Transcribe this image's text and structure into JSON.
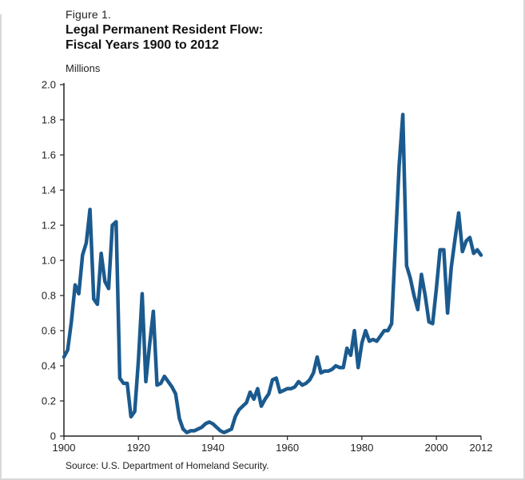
{
  "figure_label": "Figure 1.",
  "title_line1": "Legal Permanent Resident Flow:",
  "title_line2": "Fiscal Years 1900 to 2012",
  "unit_label": "Millions",
  "source": "Source: U.S. Department of Homeland Security.",
  "colors": {
    "line": "#1b5a8e",
    "axis": "#222222"
  },
  "chart_data": {
    "type": "line",
    "title": "Legal Permanent Resident Flow: Fiscal Years 1900 to 2012",
    "xlabel": "",
    "ylabel": "Millions",
    "xlim": [
      1900,
      2012
    ],
    "ylim": [
      0,
      2.0
    ],
    "x_ticks": [
      1900,
      1920,
      1940,
      1960,
      1980,
      2000,
      2012
    ],
    "x_tick_labels": [
      "1900",
      "1920",
      "1940",
      "1960",
      "1980",
      "2000",
      "2012"
    ],
    "y_ticks": [
      0,
      0.2,
      0.4,
      0.6,
      0.8,
      1.0,
      1.2,
      1.4,
      1.6,
      1.8,
      2.0
    ],
    "y_tick_labels": [
      "0",
      "0.2",
      "0.4",
      "0.6",
      "0.8",
      "1.0",
      "1.2",
      "1.4",
      "1.6",
      "1.8",
      "2.0"
    ],
    "grid": false,
    "series": [
      {
        "x": [
          1900,
          1901,
          1902,
          1903,
          1904,
          1905,
          1906,
          1907,
          1908,
          1909,
          1910,
          1911,
          1912,
          1913,
          1914,
          1915,
          1916,
          1917,
          1918,
          1919,
          1920,
          1921,
          1922,
          1923,
          1924,
          1925,
          1926,
          1927,
          1928,
          1929,
          1930,
          1931,
          1932,
          1933,
          1934,
          1935,
          1936,
          1937,
          1938,
          1939,
          1940,
          1941,
          1942,
          1943,
          1944,
          1945,
          1946,
          1947,
          1948,
          1949,
          1950,
          1951,
          1952,
          1953,
          1954,
          1955,
          1956,
          1957,
          1958,
          1959,
          1960,
          1961,
          1962,
          1963,
          1964,
          1965,
          1966,
          1967,
          1968,
          1969,
          1970,
          1971,
          1972,
          1973,
          1974,
          1975,
          1976,
          1977,
          1978,
          1979,
          1980,
          1981,
          1982,
          1983,
          1984,
          1985,
          1986,
          1987,
          1988,
          1989,
          1990,
          1991,
          1992,
          1993,
          1994,
          1995,
          1996,
          1997,
          1998,
          1999,
          2000,
          2001,
          2002,
          2003,
          2004,
          2005,
          2006,
          2007,
          2008,
          2009,
          2010,
          2011,
          2012
        ],
        "y": [
          0.45,
          0.49,
          0.65,
          0.86,
          0.81,
          1.03,
          1.1,
          1.29,
          0.78,
          0.75,
          1.04,
          0.88,
          0.84,
          1.2,
          1.22,
          0.33,
          0.3,
          0.3,
          0.11,
          0.14,
          0.43,
          0.81,
          0.31,
          0.52,
          0.71,
          0.29,
          0.3,
          0.34,
          0.31,
          0.28,
          0.24,
          0.1,
          0.04,
          0.02,
          0.03,
          0.03,
          0.04,
          0.05,
          0.07,
          0.08,
          0.07,
          0.05,
          0.03,
          0.02,
          0.03,
          0.04,
          0.11,
          0.15,
          0.17,
          0.19,
          0.25,
          0.21,
          0.27,
          0.17,
          0.21,
          0.24,
          0.32,
          0.33,
          0.25,
          0.26,
          0.27,
          0.27,
          0.28,
          0.31,
          0.29,
          0.3,
          0.32,
          0.36,
          0.45,
          0.36,
          0.37,
          0.37,
          0.38,
          0.4,
          0.39,
          0.39,
          0.5,
          0.46,
          0.6,
          0.39,
          0.53,
          0.6,
          0.54,
          0.55,
          0.54,
          0.57,
          0.6,
          0.6,
          0.64,
          1.09,
          1.54,
          1.83,
          0.97,
          0.9,
          0.8,
          0.72,
          0.92,
          0.8,
          0.65,
          0.64,
          0.84,
          1.06,
          1.06,
          0.7,
          0.96,
          1.12,
          1.27,
          1.05,
          1.11,
          1.13,
          1.04,
          1.06,
          1.03
        ]
      }
    ]
  }
}
